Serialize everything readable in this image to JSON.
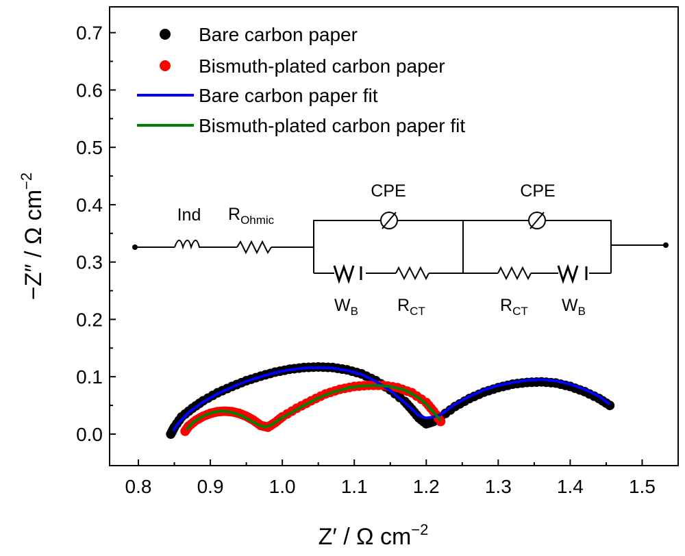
{
  "chart_data": {
    "type": "scatter",
    "xlabel": {
      "main": "Z′ / Ω cm",
      "sup": "−2"
    },
    "ylabel": {
      "main": "−Z″ / Ω cm",
      "sup": "−2"
    },
    "xlim": [
      0.76,
      1.55
    ],
    "ylim": [
      -0.055,
      0.745
    ],
    "xticks": [
      "0.8",
      "0.9",
      "1.0",
      "1.1",
      "1.2",
      "1.3",
      "1.4",
      "1.5"
    ],
    "yticks": [
      "0.0",
      "0.1",
      "0.2",
      "0.3",
      "0.4",
      "0.5",
      "0.6",
      "0.7"
    ],
    "legend_position": "top-left",
    "series": [
      {
        "name": "Bare carbon paper",
        "kind": "markers",
        "color": "#000000",
        "x": [
          0.845,
          0.85,
          0.86,
          0.875,
          0.89,
          0.91,
          0.93,
          0.95,
          0.97,
          0.99,
          1.01,
          1.03,
          1.05,
          1.07,
          1.09,
          1.11,
          1.13,
          1.15,
          1.17,
          1.18,
          1.19,
          1.2,
          1.21,
          1.22,
          1.24,
          1.26,
          1.28,
          1.3,
          1.32,
          1.34,
          1.36,
          1.38,
          1.4,
          1.42,
          1.44,
          1.455
        ],
        "y": [
          0.0,
          0.012,
          0.03,
          0.045,
          0.058,
          0.072,
          0.083,
          0.093,
          0.101,
          0.108,
          0.113,
          0.116,
          0.117,
          0.116,
          0.112,
          0.105,
          0.093,
          0.077,
          0.057,
          0.043,
          0.028,
          0.018,
          0.022,
          0.03,
          0.048,
          0.062,
          0.073,
          0.081,
          0.087,
          0.09,
          0.091,
          0.089,
          0.083,
          0.074,
          0.062,
          0.05
        ]
      },
      {
        "name": "Bismuth-plated carbon paper",
        "kind": "markers",
        "color": "#ff0000",
        "x": [
          0.865,
          0.87,
          0.88,
          0.89,
          0.9,
          0.91,
          0.92,
          0.93,
          0.94,
          0.95,
          0.96,
          0.97,
          0.98,
          0.99,
          1.0,
          1.02,
          1.04,
          1.06,
          1.08,
          1.1,
          1.12,
          1.14,
          1.16,
          1.18,
          1.2,
          1.21,
          1.22
        ],
        "y": [
          0.005,
          0.014,
          0.024,
          0.031,
          0.036,
          0.039,
          0.04,
          0.039,
          0.036,
          0.031,
          0.024,
          0.015,
          0.012,
          0.02,
          0.03,
          0.045,
          0.058,
          0.07,
          0.078,
          0.083,
          0.085,
          0.085,
          0.081,
          0.072,
          0.055,
          0.04,
          0.022
        ]
      },
      {
        "name": "Bare carbon paper fit",
        "kind": "line",
        "color": "#0000ff",
        "x": [
          0.848,
          0.855,
          0.87,
          0.89,
          0.91,
          0.93,
          0.95,
          0.97,
          0.99,
          1.01,
          1.03,
          1.05,
          1.07,
          1.09,
          1.11,
          1.13,
          1.15,
          1.17,
          1.19,
          1.2,
          1.21,
          1.22,
          1.24,
          1.26,
          1.28,
          1.3,
          1.32,
          1.34,
          1.36,
          1.38,
          1.4,
          1.42,
          1.44,
          1.455
        ],
        "y": [
          0.005,
          0.018,
          0.038,
          0.056,
          0.07,
          0.082,
          0.092,
          0.1,
          0.107,
          0.112,
          0.115,
          0.116,
          0.115,
          0.111,
          0.104,
          0.092,
          0.076,
          0.055,
          0.032,
          0.028,
          0.03,
          0.034,
          0.052,
          0.066,
          0.077,
          0.085,
          0.09,
          0.094,
          0.095,
          0.093,
          0.087,
          0.078,
          0.066,
          0.052
        ]
      },
      {
        "name": "Bismuth-plated carbon paper fit",
        "kind": "line",
        "color": "#008000",
        "x": [
          0.867,
          0.875,
          0.885,
          0.895,
          0.905,
          0.915,
          0.925,
          0.935,
          0.945,
          0.955,
          0.965,
          0.975,
          0.985,
          0.995,
          1.01,
          1.03,
          1.05,
          1.07,
          1.09,
          1.11,
          1.13,
          1.15,
          1.17,
          1.19,
          1.2,
          1.21,
          1.22
        ],
        "y": [
          0.008,
          0.019,
          0.028,
          0.034,
          0.038,
          0.04,
          0.039,
          0.036,
          0.031,
          0.024,
          0.017,
          0.012,
          0.016,
          0.025,
          0.036,
          0.05,
          0.063,
          0.073,
          0.08,
          0.084,
          0.085,
          0.083,
          0.077,
          0.063,
          0.052,
          0.038,
          0.024
        ]
      }
    ]
  },
  "circuit": {
    "ind_label": "Ind",
    "r_ohmic": {
      "main": "R",
      "sub": "Ohmic"
    },
    "cpe_label": "CPE",
    "r_ct": {
      "main": "R",
      "sub": "CT"
    },
    "w_b": {
      "main": "W",
      "sub": "B"
    }
  }
}
